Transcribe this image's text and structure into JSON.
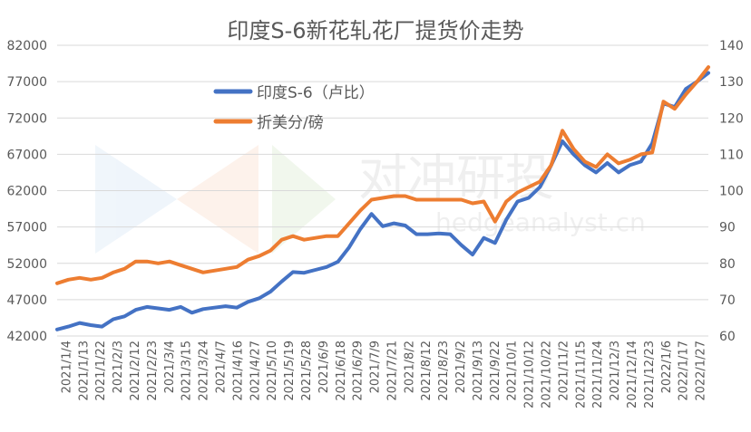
{
  "chart_data": {
    "type": "line",
    "title": "印度S-6新花轧花厂提货价走势",
    "x_tick_labels": [
      "2021/1/4",
      "2021/1/13",
      "2021/1/22",
      "2021/2/3",
      "2021/2/12",
      "2021/2/23",
      "2021/3/4",
      "2021/3/15",
      "2021/3/24",
      "2021/4/7",
      "2021/4/16",
      "2021/4/27",
      "2021/5/10",
      "2021/5/19",
      "2021/5/28",
      "2021/6/9",
      "2021/6/18",
      "2021/6/29",
      "2021/7/9",
      "2021/7/21",
      "2021/8/2",
      "2021/8/12",
      "2021/8/23",
      "2021/9/2",
      "2021/9/13",
      "2021/9/22",
      "2021/10/1",
      "2021/10/12",
      "2021/10/22",
      "2021/11/2",
      "2021/11/15",
      "2021/11/24",
      "2021/12/3",
      "2021/12/14",
      "2021/12/23",
      "2022/1/6",
      "2022/1/17",
      "2022/1/27"
    ],
    "y_left": {
      "ticks": [
        "42000",
        "47000",
        "52000",
        "57000",
        "62000",
        "67000",
        "72000",
        "77000",
        "82000"
      ],
      "min": 42000,
      "max": 82000
    },
    "y_right": {
      "ticks": [
        "60",
        "70",
        "80",
        "90",
        "100",
        "110",
        "120",
        "130",
        "140"
      ],
      "min": 60,
      "max": 140
    },
    "legend": {
      "placement": "upper-left-inside"
    },
    "grid": {
      "horizontal": true,
      "vertical": false
    },
    "watermark": {
      "text": "对冲研投",
      "subtext": "hedgeanalyst.cn"
    },
    "series": [
      {
        "name": "印度S-6（卢比）",
        "axis": "left",
        "color": "#4472C4",
        "values": [
          [
            0,
            42900
          ],
          [
            1,
            43300
          ],
          [
            2,
            43800
          ],
          [
            3,
            43500
          ],
          [
            4,
            43300
          ],
          [
            5,
            44300
          ],
          [
            6,
            44700
          ],
          [
            7,
            45600
          ],
          [
            8,
            46000
          ],
          [
            9,
            45800
          ],
          [
            10,
            45600
          ],
          [
            11,
            46000
          ],
          [
            12,
            45200
          ],
          [
            13,
            45700
          ],
          [
            14,
            45900
          ],
          [
            15,
            46100
          ],
          [
            16,
            45900
          ],
          [
            17,
            46700
          ],
          [
            18,
            47200
          ],
          [
            19,
            48100
          ],
          [
            20,
            49500
          ],
          [
            21,
            50800
          ],
          [
            22,
            50700
          ],
          [
            23,
            51100
          ],
          [
            24,
            51500
          ],
          [
            25,
            52200
          ],
          [
            26,
            54200
          ],
          [
            27,
            56700
          ],
          [
            28,
            58800
          ],
          [
            29,
            57100
          ],
          [
            30,
            57500
          ],
          [
            31,
            57200
          ],
          [
            32,
            56000
          ],
          [
            33,
            56000
          ],
          [
            34,
            56100
          ],
          [
            35,
            56000
          ],
          [
            36,
            54500
          ],
          [
            37,
            53200
          ],
          [
            38,
            55500
          ],
          [
            39,
            54800
          ],
          [
            40,
            58000
          ],
          [
            41,
            60500
          ],
          [
            42,
            61000
          ],
          [
            43,
            62500
          ],
          [
            44,
            65500
          ],
          [
            45,
            68800
          ],
          [
            46,
            67000
          ],
          [
            47,
            65500
          ],
          [
            48,
            64500
          ],
          [
            49,
            65800
          ],
          [
            50,
            64500
          ],
          [
            51,
            65500
          ],
          [
            52,
            66000
          ],
          [
            53,
            68500
          ],
          [
            54,
            74000
          ],
          [
            55,
            73500
          ],
          [
            56,
            76000
          ],
          [
            57,
            77000
          ],
          [
            58,
            78200
          ]
        ]
      },
      {
        "name": "折美分/磅",
        "axis": "right",
        "color": "#ED7D31",
        "values": [
          [
            0,
            74.5
          ],
          [
            1,
            75.5
          ],
          [
            2,
            76
          ],
          [
            3,
            75.5
          ],
          [
            4,
            76
          ],
          [
            5,
            77.5
          ],
          [
            6,
            78.5
          ],
          [
            7,
            80.5
          ],
          [
            8,
            80.5
          ],
          [
            9,
            80
          ],
          [
            10,
            80.5
          ],
          [
            11,
            79.5
          ],
          [
            12,
            78.5
          ],
          [
            13,
            77.5
          ],
          [
            14,
            78
          ],
          [
            15,
            78.5
          ],
          [
            16,
            79
          ],
          [
            17,
            81
          ],
          [
            18,
            82
          ],
          [
            19,
            83.5
          ],
          [
            20,
            86.5
          ],
          [
            21,
            87.5
          ],
          [
            22,
            86.5
          ],
          [
            23,
            87
          ],
          [
            24,
            87.5
          ],
          [
            25,
            87.5
          ],
          [
            26,
            91
          ],
          [
            27,
            94.5
          ],
          [
            28,
            97.5
          ],
          [
            29,
            98
          ],
          [
            30,
            98.5
          ],
          [
            31,
            98.5
          ],
          [
            32,
            97.5
          ],
          [
            33,
            97.5
          ],
          [
            34,
            97.5
          ],
          [
            35,
            97.5
          ],
          [
            36,
            97.5
          ],
          [
            37,
            96.5
          ],
          [
            38,
            97
          ],
          [
            39,
            91.5
          ],
          [
            40,
            97
          ],
          [
            41,
            99.5
          ],
          [
            42,
            101
          ],
          [
            43,
            102.5
          ],
          [
            44,
            107
          ],
          [
            45,
            116.5
          ],
          [
            46,
            111.5
          ],
          [
            47,
            108
          ],
          [
            48,
            106.5
          ],
          [
            49,
            110
          ],
          [
            50,
            107.5
          ],
          [
            51,
            108.5
          ],
          [
            52,
            110
          ],
          [
            53,
            110.5
          ],
          [
            54,
            124.5
          ],
          [
            55,
            122.5
          ],
          [
            56,
            126.5
          ],
          [
            57,
            130
          ],
          [
            58,
            134
          ]
        ]
      }
    ]
  }
}
